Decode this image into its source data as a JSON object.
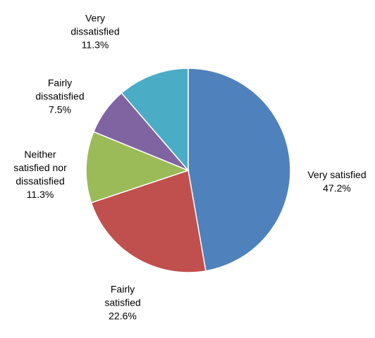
{
  "chart_data": {
    "type": "pie",
    "categories": [
      "Very satisfied",
      "Fairly satisfied",
      "Neither satisfied nor dissatisfied",
      "Fairly dissatisfied",
      "Very dissatisfied"
    ],
    "values": [
      47.2,
      22.6,
      11.3,
      7.5,
      11.3
    ],
    "value_labels": [
      "47.2%",
      "22.6%",
      "11.3%",
      "7.5%",
      "11.3%"
    ],
    "colors": [
      "#4f81bd",
      "#c0504d",
      "#9bbb59",
      "#8064a2",
      "#4bacc6"
    ]
  }
}
